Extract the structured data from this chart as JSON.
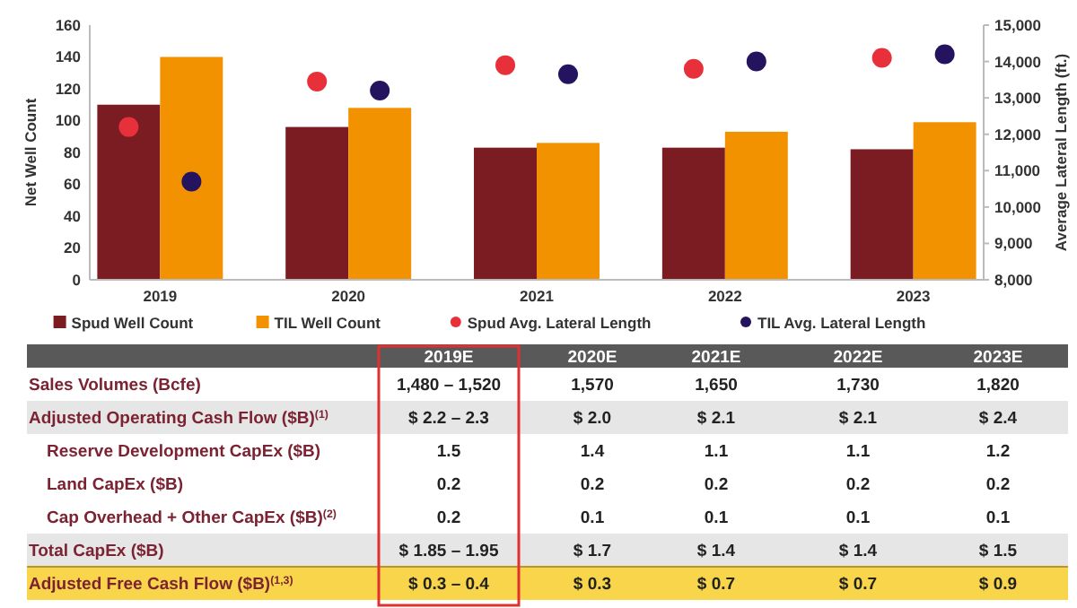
{
  "chart_data": {
    "type": "bar",
    "categories": [
      "2019",
      "2020",
      "2021",
      "2022",
      "2023"
    ],
    "ylabel": "Net Well Count",
    "y2label": "Average Lateral Length (ft.)",
    "ylim": [
      0,
      160
    ],
    "yticks": [
      0,
      20,
      40,
      60,
      80,
      100,
      120,
      140,
      160
    ],
    "y2lim": [
      8000,
      15000
    ],
    "y2ticks": [
      {
        "value": 8000,
        "label": "8,000"
      },
      {
        "value": 9000,
        "label": "9,000"
      },
      {
        "value": 10000,
        "label": "10,000"
      },
      {
        "value": 11000,
        "label": "11,000"
      },
      {
        "value": 12000,
        "label": "12,000"
      },
      {
        "value": 13000,
        "label": "13,000"
      },
      {
        "value": 14000,
        "label": "14,000"
      },
      {
        "value": 15000,
        "label": "15,000"
      }
    ],
    "legend": "bottom",
    "grid": false,
    "series": [
      {
        "name": "Spud Well Count",
        "color": "#7b1c22",
        "values": [
          110,
          96,
          83,
          83,
          82
        ]
      },
      {
        "name": "TIL Well Count",
        "color": "#f39200",
        "values": [
          140,
          108,
          86,
          93,
          99
        ]
      },
      {
        "name": "Spud Avg. Lateral Length",
        "type": "scatter",
        "axis": "y2",
        "marker": "circle",
        "color": "#e8303a",
        "values": [
          12200,
          13450,
          13900,
          13800,
          14100
        ]
      },
      {
        "name": "TIL Avg. Lateral Length",
        "type": "scatter",
        "axis": "y2",
        "marker": "circle",
        "color": "#24135f",
        "values": [
          10700,
          13200,
          13650,
          14000,
          14200
        ]
      }
    ],
    "annotations": [
      "2019E",
      "2020E",
      "2021E",
      "2022E",
      "2023E",
      "Sales Volumes (Bcfe)",
      "1,480 – 1,520",
      "1,570",
      "1,650",
      "1,730",
      "1,820",
      "Adjusted Operating Cash Flow ($B)$^{(1)}$",
      "$ 2.2 – 2.3",
      "$ 2.0",
      "$ 2.1",
      "$ 2.1",
      "$ 2.4",
      "Reserve Development CapEx ($B)",
      "1.5",
      "1.4",
      "1.1",
      "1.1",
      "1.2",
      "Land CapEx ($B)",
      "0.2",
      "0.2",
      "0.2",
      "0.2",
      "0.2",
      "Cap Overhead + Other CapEx ($B)$^{(2)}$",
      "0.2",
      "0.1",
      "0.1",
      "0.1",
      "0.1",
      "Total CapEx ($B)",
      "$ 1.85 – 1.95",
      "$ 1.7",
      "$ 1.4",
      "$ 1.4",
      "$ 1.5",
      "Adjusted Free Cash Flow ($B)$^{(1,3)}$",
      "$ 0.3 – 0.4",
      "$ 0.3",
      "$ 0.7",
      "$ 0.7",
      "$ 0.9"
    ]
  }
}
